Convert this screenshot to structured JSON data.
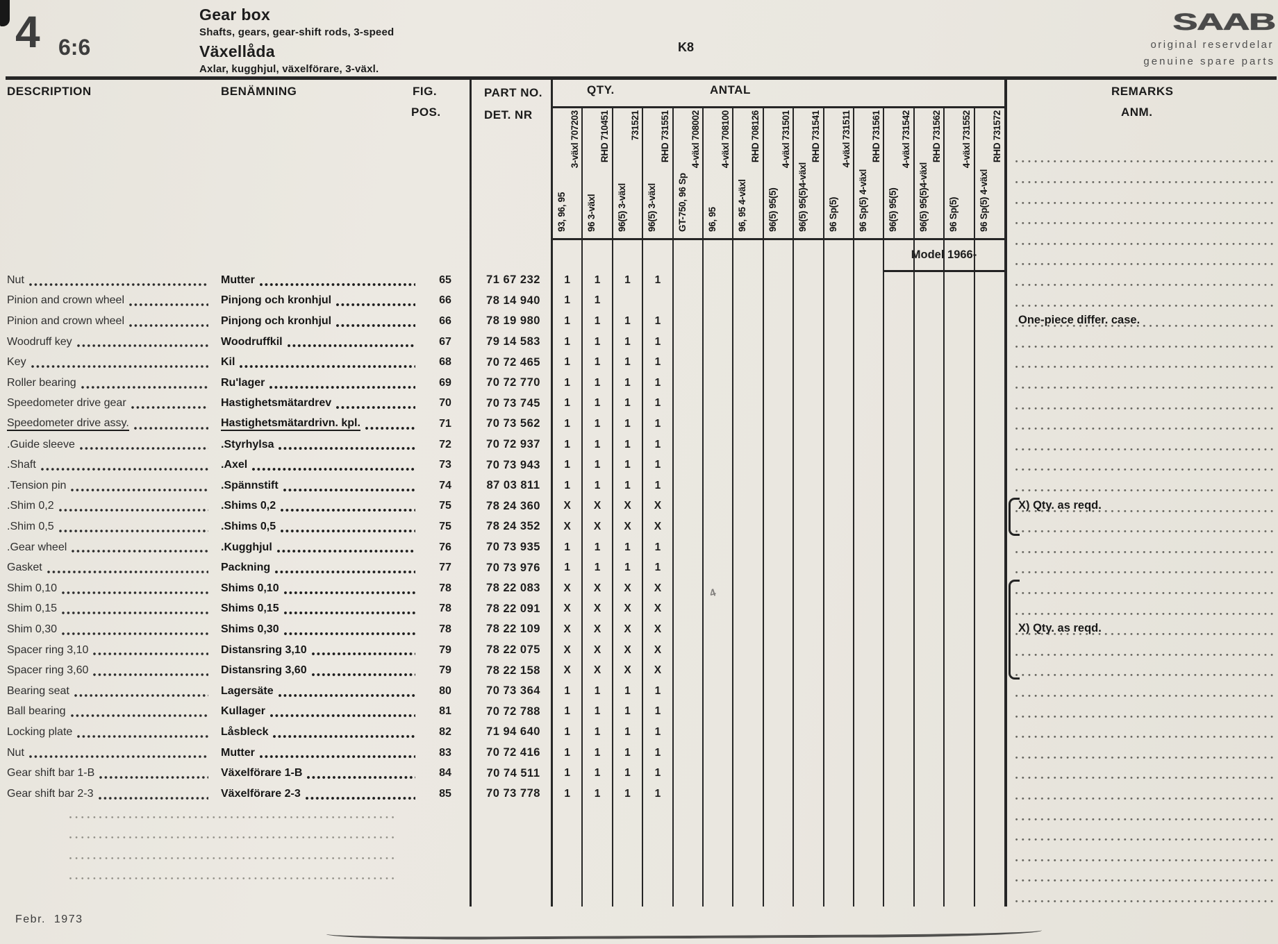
{
  "page": {
    "code": "4",
    "section": "6:6",
    "title_en": "Gear box",
    "subtitle_en": "Shafts, gears, gear-shift rods, 3-speed",
    "title_sv": "Växellåda",
    "subtitle_sv": "Axlar, kugghjul, växelförare, 3-växl.",
    "plate_code": "K8",
    "brand": {
      "logo": "SAAB",
      "line1": "original reservdelar",
      "line2": "genuine spare parts"
    },
    "footer_date": "Febr. 1973"
  },
  "table": {
    "col_headers": {
      "description": "DESCRIPTION",
      "benamning": "BENÄMNING",
      "fig": "FIG.",
      "pos": "POS.",
      "part_no": "PART NO.",
      "det_nr": "DET. NR",
      "qty": "QTY.",
      "antal": "ANTAL",
      "remarks": "REMARKS",
      "anm": "ANM."
    },
    "model_note": "Model 1966-",
    "variant_columns": [
      {
        "line1": "93, 96, 95",
        "line2": "3-växl 707203"
      },
      {
        "line1": "96 3-växl",
        "line2": "RHD 710451"
      },
      {
        "line1": "96(5) 3-växl",
        "line2": "731521"
      },
      {
        "line1": "96(5) 3-växl",
        "line2": "RHD 731551"
      },
      {
        "line1": "GT-750, 96 Sp",
        "line2": "4-växl 708002"
      },
      {
        "line1": "96, 95",
        "line2": "4-växl 708100"
      },
      {
        "line1": "96, 95 4-växl",
        "line2": "RHD 708126"
      },
      {
        "line1": "96(5) 95(5)",
        "line2": "4-växl 731501"
      },
      {
        "line1": "96(5) 95(5)4-växl",
        "line2": "RHD 731541"
      },
      {
        "line1": "96 Sp(5)",
        "line2": "4-växl 731511"
      },
      {
        "line1": "96 Sp(5) 4-växl",
        "line2": "RHD 731561"
      },
      {
        "line1": "96(5) 95(5)",
        "line2": "4-växl 731542"
      },
      {
        "line1": "96(5) 95(5)4-växl",
        "line2": "RHD 731562"
      },
      {
        "line1": "96 Sp(5)",
        "line2": "4-växl 731552"
      },
      {
        "line1": "96 Sp(5) 4-växl",
        "line2": "RHD 731572"
      }
    ],
    "rows": [
      {
        "desc": "Nut",
        "sv": "Mutter",
        "fig": "65",
        "part": "71 67 232",
        "qty": [
          "1",
          "1",
          "1",
          "1"
        ]
      },
      {
        "desc": "Pinion and crown wheel",
        "sv": "Pinjong och kronhjul",
        "fig": "66",
        "part": "78 14 940",
        "qty": [
          "1",
          "1",
          "",
          ""
        ]
      },
      {
        "desc": "Pinion and crown wheel",
        "sv": "Pinjong och kronhjul",
        "fig": "66",
        "part": "78 19 980",
        "qty": [
          "1",
          "1",
          "1",
          "1"
        ]
      },
      {
        "desc": "Woodruff key",
        "sv": "Woodruffkil",
        "fig": "67",
        "part": "79 14 583",
        "qty": [
          "1",
          "1",
          "1",
          "1"
        ]
      },
      {
        "desc": "Key",
        "sv": "Kil",
        "fig": "68",
        "part": "70 72 465",
        "qty": [
          "1",
          "1",
          "1",
          "1"
        ]
      },
      {
        "desc": "Roller bearing",
        "sv": "Ru'lager",
        "fig": "69",
        "part": "70 72 770",
        "qty": [
          "1",
          "1",
          "1",
          "1"
        ]
      },
      {
        "desc": "Speedometer drive gear",
        "sv": "Hastighetsmätardrev",
        "fig": "70",
        "part": "70 73 745",
        "qty": [
          "1",
          "1",
          "1",
          "1"
        ]
      },
      {
        "desc": "Speedometer drive assy.",
        "sv": "Hastighetsmätardrivn. kpl.",
        "fig": "71",
        "part": "70 73 562",
        "qty": [
          "1",
          "1",
          "1",
          "1"
        ],
        "underline": true
      },
      {
        "desc": ".Guide sleeve",
        "sv": ".Styrhylsa",
        "fig": "72",
        "part": "70 72 937",
        "qty": [
          "1",
          "1",
          "1",
          "1"
        ]
      },
      {
        "desc": ".Shaft",
        "sv": ".Axel",
        "fig": "73",
        "part": "70 73 943",
        "qty": [
          "1",
          "1",
          "1",
          "1"
        ]
      },
      {
        "desc": ".Tension pin",
        "sv": ".Spännstift",
        "fig": "74",
        "part": "87 03 811",
        "qty": [
          "1",
          "1",
          "1",
          "1"
        ]
      },
      {
        "desc": ".Shim 0,2",
        "sv": ".Shims 0,2",
        "fig": "75",
        "part": "78 24 360",
        "qty": [
          "X",
          "X",
          "X",
          "X"
        ]
      },
      {
        "desc": ".Shim 0,5",
        "sv": ".Shims 0,5",
        "fig": "75",
        "part": "78 24 352",
        "qty": [
          "X",
          "X",
          "X",
          "X"
        ]
      },
      {
        "desc": ".Gear wheel",
        "sv": ".Kugghjul",
        "fig": "76",
        "part": "70 73 935",
        "qty": [
          "1",
          "1",
          "1",
          "1"
        ]
      },
      {
        "desc": "Gasket",
        "sv": "Packning",
        "fig": "77",
        "part": "70 73 976",
        "qty": [
          "1",
          "1",
          "1",
          "1"
        ]
      },
      {
        "desc": "Shim 0,10",
        "sv": "Shims 0,10",
        "fig": "78",
        "part": "78 22 083",
        "qty": [
          "X",
          "X",
          "X",
          "X"
        ]
      },
      {
        "desc": "Shim 0,15",
        "sv": "Shims 0,15",
        "fig": "78",
        "part": "78 22 091",
        "qty": [
          "X",
          "X",
          "X",
          "X"
        ]
      },
      {
        "desc": "Shim 0,30",
        "sv": "Shims 0,30",
        "fig": "78",
        "part": "78 22 109",
        "qty": [
          "X",
          "X",
          "X",
          "X"
        ]
      },
      {
        "desc": "Spacer ring 3,10",
        "sv": "Distansring 3,10",
        "fig": "79",
        "part": "78 22 075",
        "qty": [
          "X",
          "X",
          "X",
          "X"
        ]
      },
      {
        "desc": "Spacer ring 3,60",
        "sv": "Distansring 3,60",
        "fig": "79",
        "part": "78 22 158",
        "qty": [
          "X",
          "X",
          "X",
          "X"
        ]
      },
      {
        "desc": "Bearing seat",
        "sv": "Lagersäte",
        "fig": "80",
        "part": "70 73 364",
        "qty": [
          "1",
          "1",
          "1",
          "1"
        ]
      },
      {
        "desc": "Ball bearing",
        "sv": "Kullager",
        "fig": "81",
        "part": "70 72 788",
        "qty": [
          "1",
          "1",
          "1",
          "1"
        ]
      },
      {
        "desc": "Locking plate",
        "sv": "Låsbleck",
        "fig": "82",
        "part": "71 94 640",
        "qty": [
          "1",
          "1",
          "1",
          "1"
        ]
      },
      {
        "desc": "Nut",
        "sv": "Mutter",
        "fig": "83",
        "part": "70 72 416",
        "qty": [
          "1",
          "1",
          "1",
          "1"
        ]
      },
      {
        "desc": "Gear shift bar 1-B",
        "sv": "Växelförare 1-B",
        "fig": "84",
        "part": "70 74 511",
        "qty": [
          "1",
          "1",
          "1",
          "1"
        ]
      },
      {
        "desc": "Gear shift bar 2-3",
        "sv": "Växelförare 2-3",
        "fig": "85",
        "part": "70 73 778",
        "qty": [
          "1",
          "1",
          "1",
          "1"
        ]
      }
    ],
    "remarks": [
      {
        "row": 2,
        "text": "One-piece differ. case."
      },
      {
        "row": 11,
        "text": "X) Qty. as reqd.",
        "bracket": {
          "from": 11,
          "to": 12
        }
      },
      {
        "row": 17,
        "text": "X) Qty. as reqd.",
        "bracket": {
          "from": 15,
          "to": 19
        }
      }
    ],
    "remark_dot_rows_before": 6,
    "remark_dot_rows_after": 5,
    "desc_extra_dot_rows": 4
  },
  "artifacts": {
    "stray_mark": "4"
  },
  "colors": {
    "paper": "#eae7e0",
    "ink": "#1d1d1d"
  }
}
